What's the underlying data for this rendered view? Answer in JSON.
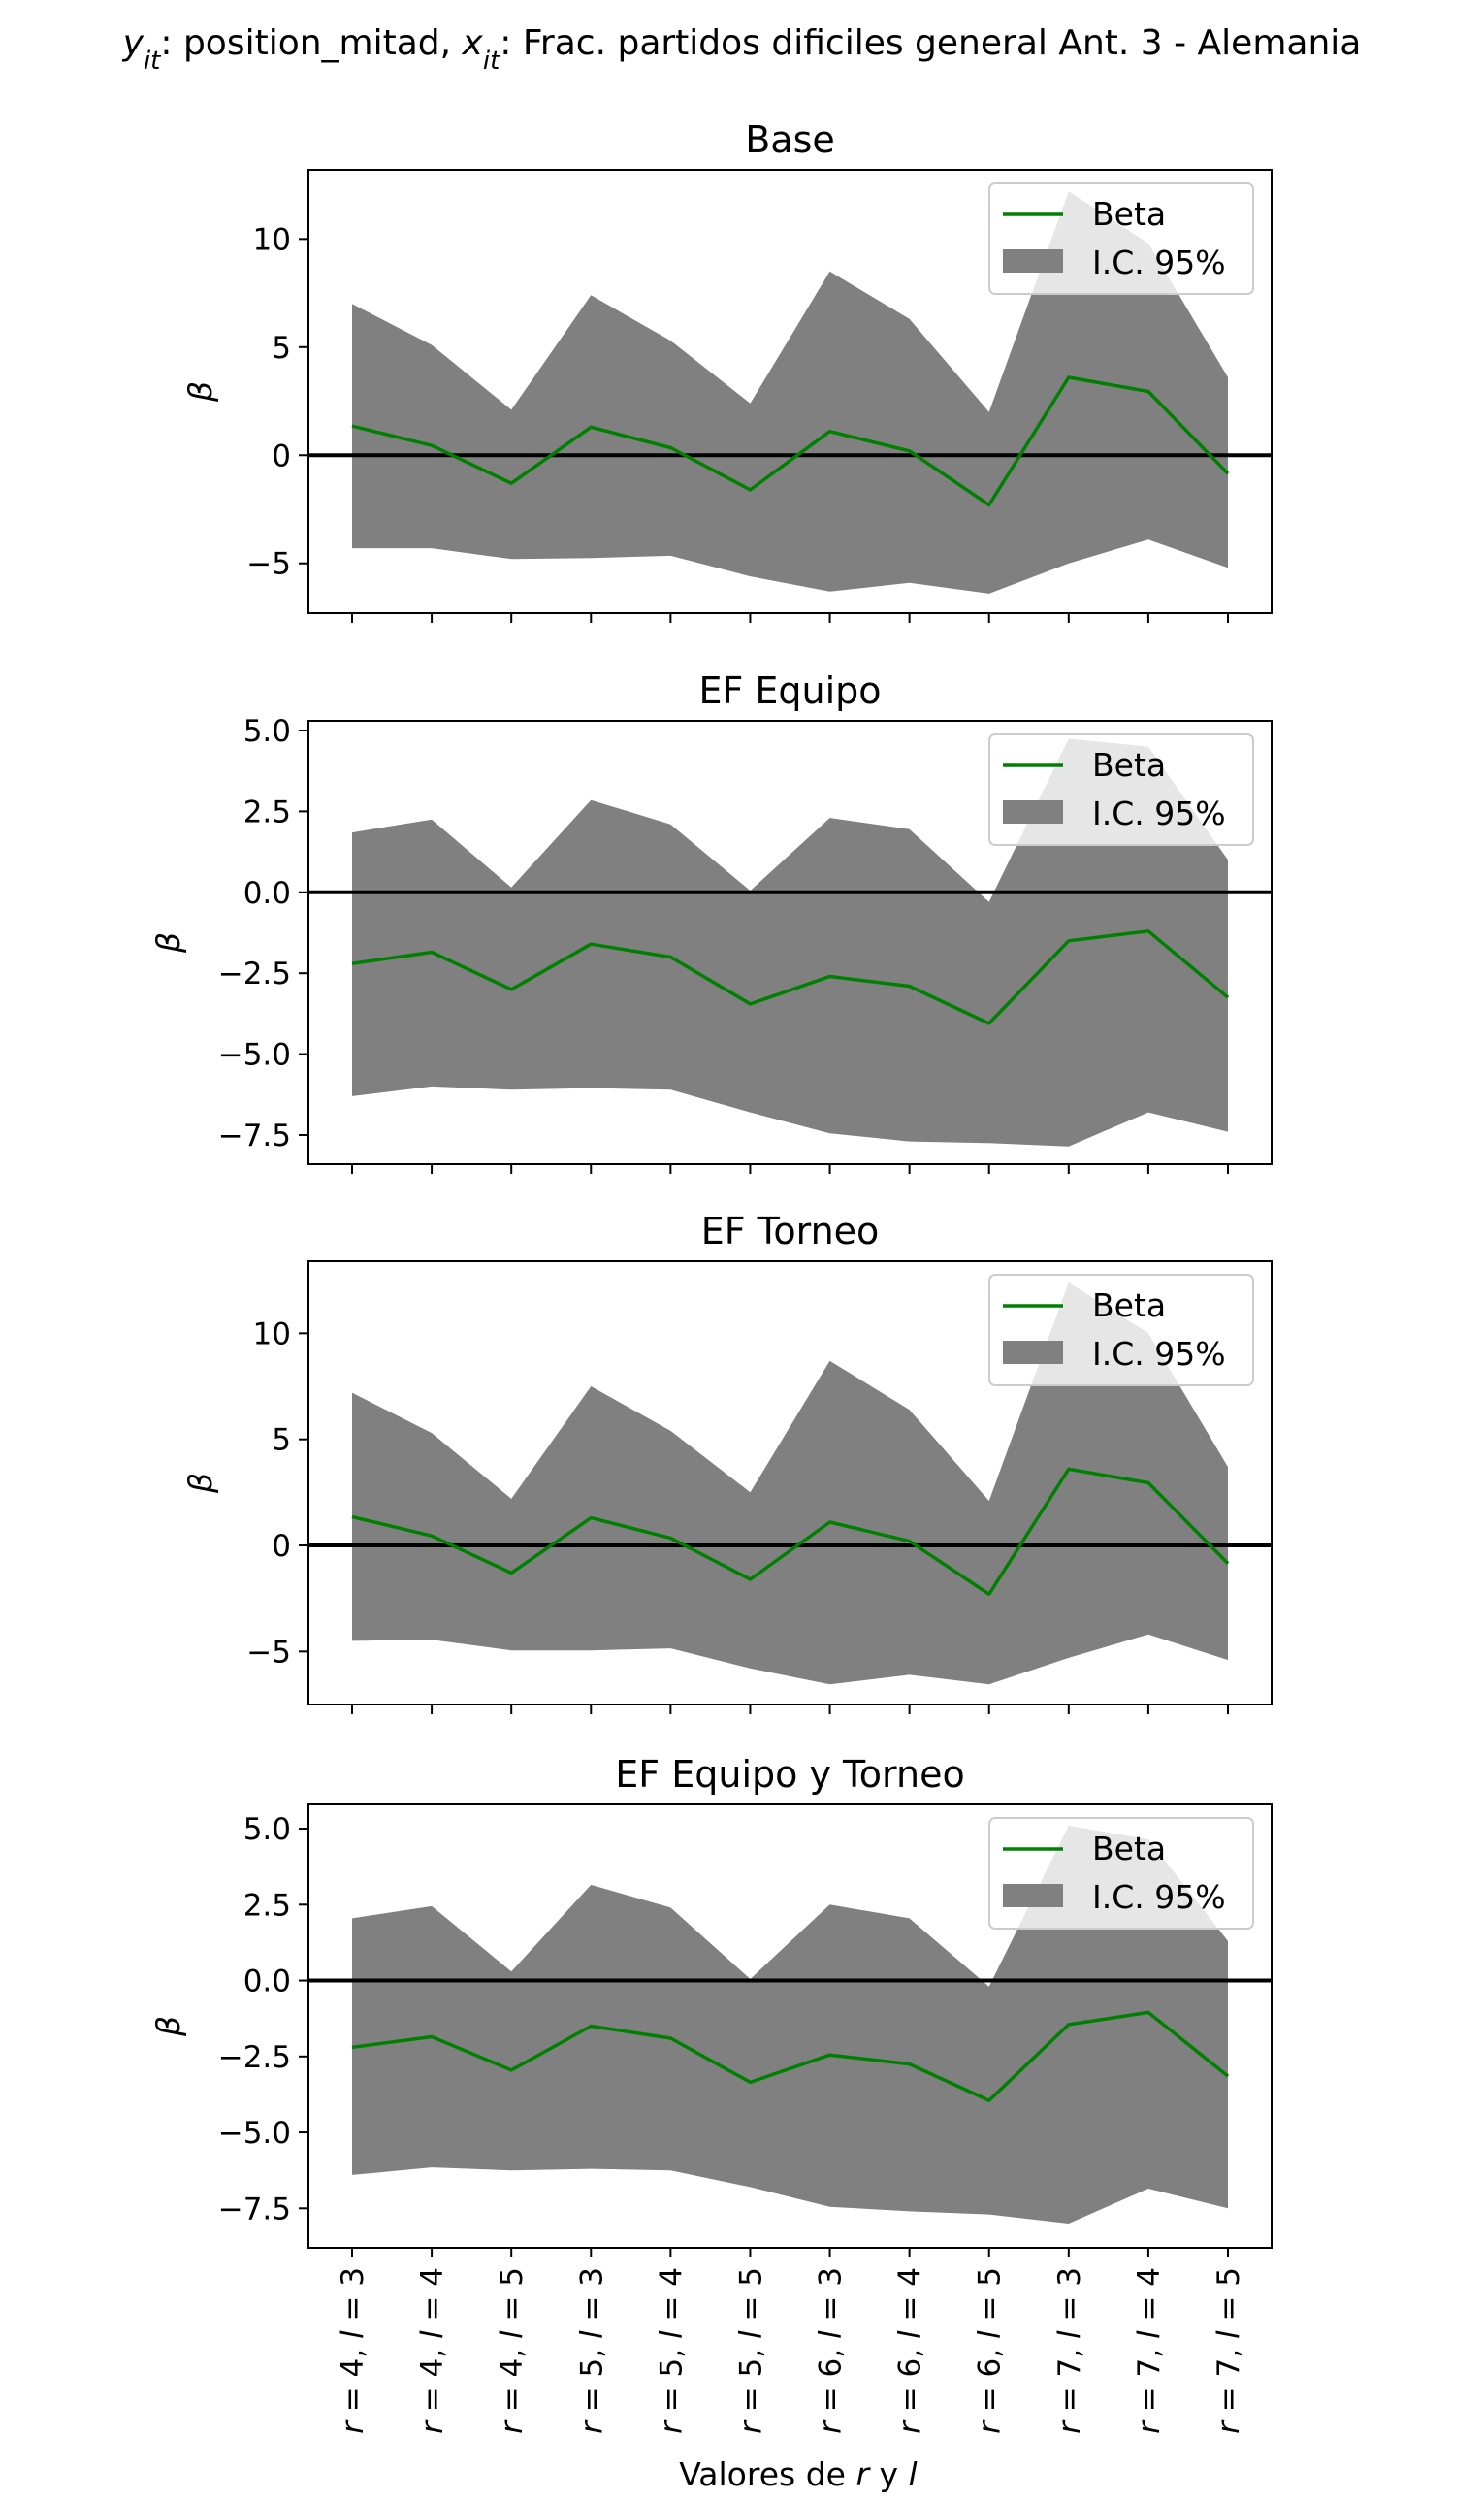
{
  "figure": {
    "suptitle_parts": [
      {
        "text": "y",
        "style": "italic"
      },
      {
        "text": "it",
        "style": "italic-sub"
      },
      {
        "text": ": position_mitad, ",
        "style": "normal"
      },
      {
        "text": "x",
        "style": "italic"
      },
      {
        "text": "it",
        "style": "italic-sub"
      },
      {
        "text": ": Frac. partidos dificiles general Ant. 3 - Alemania",
        "style": "normal"
      }
    ],
    "xlabel_parts": [
      {
        "text": "Valores de ",
        "style": "normal"
      },
      {
        "text": "r",
        "style": "italic"
      },
      {
        "text": " y ",
        "style": "normal"
      },
      {
        "text": "l",
        "style": "italic"
      }
    ],
    "legend": {
      "line_label": "Beta",
      "band_label": "I.C. 95%",
      "placement": "upper right"
    },
    "colors": {
      "beta_line": "#008000",
      "band": "#808080",
      "zero_line": "#000000",
      "legend_frame": "#cccccc"
    }
  },
  "chart_data": [
    {
      "type": "line",
      "title": "Base",
      "ylabel": "β",
      "categories": [
        {
          "r": "4",
          "l": "3"
        },
        {
          "r": "4",
          "l": "4"
        },
        {
          "r": "4",
          "l": "5"
        },
        {
          "r": "5",
          "l": "3"
        },
        {
          "r": "5",
          "l": "4"
        },
        {
          "r": "5",
          "l": "5"
        },
        {
          "r": "6",
          "l": "3"
        },
        {
          "r": "6",
          "l": "4"
        },
        {
          "r": "6",
          "l": "5"
        },
        {
          "r": "7",
          "l": "3"
        },
        {
          "r": "7",
          "l": "4"
        },
        {
          "r": "7",
          "l": "5"
        }
      ],
      "ylim": [
        -7.3,
        13.2
      ],
      "yticks": [
        {
          "v": -5,
          "label": "−5"
        },
        {
          "v": 0,
          "label": "0"
        },
        {
          "v": 5,
          "label": "5"
        },
        {
          "v": 10,
          "label": "10"
        }
      ],
      "series": [
        {
          "name": "Beta",
          "values": [
            1.35,
            0.45,
            -1.3,
            1.3,
            0.35,
            -1.6,
            1.1,
            0.2,
            -2.3,
            3.6,
            2.95,
            -0.85
          ]
        }
      ],
      "ci_upper": [
        7.0,
        5.1,
        2.1,
        7.4,
        5.3,
        2.4,
        8.5,
        6.3,
        2.0,
        12.2,
        9.8,
        3.6
      ],
      "ci_lower": [
        -4.3,
        -4.3,
        -4.8,
        -4.75,
        -4.65,
        -5.6,
        -6.3,
        -5.9,
        -6.4,
        -5.0,
        -3.9,
        -5.2
      ],
      "zero_line": 0
    },
    {
      "type": "line",
      "title": "EF Equipo",
      "ylabel": "β",
      "categories": [
        {
          "r": "4",
          "l": "3"
        },
        {
          "r": "4",
          "l": "4"
        },
        {
          "r": "4",
          "l": "5"
        },
        {
          "r": "5",
          "l": "3"
        },
        {
          "r": "5",
          "l": "4"
        },
        {
          "r": "5",
          "l": "5"
        },
        {
          "r": "6",
          "l": "3"
        },
        {
          "r": "6",
          "l": "4"
        },
        {
          "r": "6",
          "l": "5"
        },
        {
          "r": "7",
          "l": "3"
        },
        {
          "r": "7",
          "l": "4"
        },
        {
          "r": "7",
          "l": "5"
        }
      ],
      "ylim": [
        -8.4,
        5.3
      ],
      "yticks": [
        {
          "v": -7.5,
          "label": "−7.5"
        },
        {
          "v": -5.0,
          "label": "−5.0"
        },
        {
          "v": -2.5,
          "label": "−2.5"
        },
        {
          "v": 0.0,
          "label": "0.0"
        },
        {
          "v": 2.5,
          "label": "2.5"
        },
        {
          "v": 5.0,
          "label": "5.0"
        }
      ],
      "series": [
        {
          "name": "Beta",
          "values": [
            -2.2,
            -1.85,
            -3.0,
            -1.6,
            -2.0,
            -3.45,
            -2.6,
            -2.9,
            -4.05,
            -1.5,
            -1.2,
            -3.25
          ]
        }
      ],
      "ci_upper": [
        1.85,
        2.25,
        0.15,
        2.85,
        2.1,
        0.05,
        2.3,
        1.95,
        -0.3,
        4.75,
        4.5,
        1.0
      ],
      "ci_lower": [
        -6.3,
        -6.0,
        -6.1,
        -6.05,
        -6.1,
        -6.8,
        -7.45,
        -7.7,
        -7.75,
        -7.85,
        -6.8,
        -7.4
      ],
      "zero_line": 0
    },
    {
      "type": "line",
      "title": "EF Torneo",
      "ylabel": "β",
      "categories": [
        {
          "r": "4",
          "l": "3"
        },
        {
          "r": "4",
          "l": "4"
        },
        {
          "r": "4",
          "l": "5"
        },
        {
          "r": "5",
          "l": "3"
        },
        {
          "r": "5",
          "l": "4"
        },
        {
          "r": "5",
          "l": "5"
        },
        {
          "r": "6",
          "l": "3"
        },
        {
          "r": "6",
          "l": "4"
        },
        {
          "r": "6",
          "l": "5"
        },
        {
          "r": "7",
          "l": "3"
        },
        {
          "r": "7",
          "l": "4"
        },
        {
          "r": "7",
          "l": "5"
        }
      ],
      "ylim": [
        -7.5,
        13.4
      ],
      "yticks": [
        {
          "v": -5,
          "label": "−5"
        },
        {
          "v": 0,
          "label": "0"
        },
        {
          "v": 5,
          "label": "5"
        },
        {
          "v": 10,
          "label": "10"
        }
      ],
      "series": [
        {
          "name": "Beta",
          "values": [
            1.35,
            0.45,
            -1.3,
            1.3,
            0.35,
            -1.6,
            1.1,
            0.2,
            -2.3,
            3.6,
            2.95,
            -0.85
          ]
        }
      ],
      "ci_upper": [
        7.2,
        5.3,
        2.2,
        7.5,
        5.4,
        2.5,
        8.7,
        6.4,
        2.1,
        12.4,
        10.0,
        3.7
      ],
      "ci_lower": [
        -4.5,
        -4.45,
        -4.95,
        -4.95,
        -4.85,
        -5.8,
        -6.55,
        -6.1,
        -6.55,
        -5.3,
        -4.2,
        -5.4
      ],
      "zero_line": 0
    },
    {
      "type": "line",
      "title": "EF Equipo y Torneo",
      "ylabel": "β",
      "categories": [
        {
          "r": "4",
          "l": "3"
        },
        {
          "r": "4",
          "l": "4"
        },
        {
          "r": "4",
          "l": "5"
        },
        {
          "r": "5",
          "l": "3"
        },
        {
          "r": "5",
          "l": "4"
        },
        {
          "r": "5",
          "l": "5"
        },
        {
          "r": "6",
          "l": "3"
        },
        {
          "r": "6",
          "l": "4"
        },
        {
          "r": "6",
          "l": "5"
        },
        {
          "r": "7",
          "l": "3"
        },
        {
          "r": "7",
          "l": "4"
        },
        {
          "r": "7",
          "l": "5"
        }
      ],
      "ylim": [
        -8.8,
        5.8
      ],
      "yticks": [
        {
          "v": -7.5,
          "label": "−7.5"
        },
        {
          "v": -5.0,
          "label": "−5.0"
        },
        {
          "v": -2.5,
          "label": "−2.5"
        },
        {
          "v": 0.0,
          "label": "0.0"
        },
        {
          "v": 2.5,
          "label": "2.5"
        },
        {
          "v": 5.0,
          "label": "5.0"
        }
      ],
      "series": [
        {
          "name": "Beta",
          "values": [
            -2.2,
            -1.85,
            -2.95,
            -1.5,
            -1.9,
            -3.35,
            -2.45,
            -2.75,
            -3.95,
            -1.45,
            -1.05,
            -3.15
          ]
        }
      ],
      "ci_upper": [
        2.05,
        2.45,
        0.3,
        3.15,
        2.4,
        0.05,
        2.5,
        2.05,
        -0.2,
        5.1,
        4.65,
        1.3
      ],
      "ci_lower": [
        -6.4,
        -6.15,
        -6.25,
        -6.2,
        -6.25,
        -6.8,
        -7.45,
        -7.6,
        -7.7,
        -8.0,
        -6.85,
        -7.5
      ],
      "zero_line": 0
    }
  ]
}
